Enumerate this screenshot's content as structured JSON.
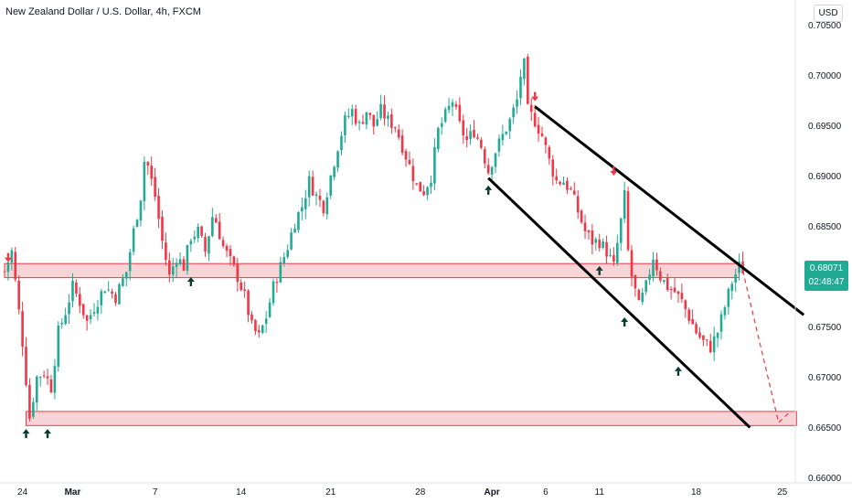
{
  "title": "New Zealand Dollar / U.S. Dollar, 4h, FXCM",
  "currency_button": "USD",
  "last_price": "0.68071",
  "countdown": "02:48:47",
  "colors": {
    "up": "#22ab94",
    "down": "#f23645",
    "zone_fill": "#f8c9cd",
    "zone_stroke": "#f23645",
    "channel": "#000000",
    "up_arrow": "#0c3a30",
    "down_arrow": "#f23645"
  },
  "icons": {
    "support_marker": "up-arrow-icon",
    "resistance_marker": "down-arrow-icon"
  },
  "chart_data": {
    "type": "candlestick",
    "title": "New Zealand Dollar / U.S. Dollar, 4h, FXCM",
    "y_axis_side": "right",
    "ylim": [
      0.6595,
      0.7075
    ],
    "y_ticks": [
      "0.70500",
      "0.70000",
      "0.69500",
      "0.69000",
      "0.68500",
      "0.68000",
      "0.67500",
      "0.67000",
      "0.66500",
      "0.66000"
    ],
    "y_tick_values": [
      0.705,
      0.7,
      0.695,
      0.69,
      0.685,
      0.68,
      0.675,
      0.67,
      0.665,
      0.66
    ],
    "x_ticks": [
      {
        "label": "24",
        "bar": 5,
        "bold": false
      },
      {
        "label": "Mar",
        "bar": 19,
        "bold": true
      },
      {
        "label": "7",
        "bar": 42,
        "bold": false
      },
      {
        "label": "14",
        "bar": 66,
        "bold": false
      },
      {
        "label": "21",
        "bar": 91,
        "bold": false
      },
      {
        "label": "28",
        "bar": 116,
        "bold": false
      },
      {
        "label": "Apr",
        "bar": 136,
        "bold": true
      },
      {
        "label": "6",
        "bar": 151,
        "bold": false
      },
      {
        "label": "11",
        "bar": 166,
        "bold": false
      },
      {
        "label": "18",
        "bar": 193,
        "bold": false
      },
      {
        "label": "25",
        "bar": 217,
        "bold": false
      }
    ],
    "path": [
      [
        0,
        0.6805
      ],
      [
        2,
        0.6825
      ],
      [
        5,
        0.6735
      ],
      [
        7,
        0.666
      ],
      [
        9,
        0.67
      ],
      [
        11,
        0.6705
      ],
      [
        13,
        0.669
      ],
      [
        15,
        0.6745
      ],
      [
        17,
        0.6765
      ],
      [
        19,
        0.679
      ],
      [
        21,
        0.6775
      ],
      [
        23,
        0.6755
      ],
      [
        25,
        0.677
      ],
      [
        28,
        0.679
      ],
      [
        31,
        0.678
      ],
      [
        34,
        0.6805
      ],
      [
        36,
        0.6845
      ],
      [
        38,
        0.688
      ],
      [
        39,
        0.6915
      ],
      [
        40,
        0.691
      ],
      [
        42,
        0.688
      ],
      [
        44,
        0.6835
      ],
      [
        46,
        0.68
      ],
      [
        48,
        0.682
      ],
      [
        50,
        0.681
      ],
      [
        52,
        0.684
      ],
      [
        54,
        0.6845
      ],
      [
        56,
        0.6825
      ],
      [
        58,
        0.686
      ],
      [
        59,
        0.6855
      ],
      [
        61,
        0.683
      ],
      [
        63,
        0.6815
      ],
      [
        65,
        0.68
      ],
      [
        67,
        0.678
      ],
      [
        69,
        0.675
      ],
      [
        71,
        0.674
      ],
      [
        73,
        0.676
      ],
      [
        75,
        0.679
      ],
      [
        77,
        0.681
      ],
      [
        79,
        0.683
      ],
      [
        81,
        0.6855
      ],
      [
        83,
        0.687
      ],
      [
        85,
        0.6895
      ],
      [
        87,
        0.688
      ],
      [
        89,
        0.687
      ],
      [
        91,
        0.69
      ],
      [
        93,
        0.693
      ],
      [
        95,
        0.6955
      ],
      [
        97,
        0.6965
      ],
      [
        99,
        0.695
      ],
      [
        101,
        0.6965
      ],
      [
        103,
        0.695
      ],
      [
        105,
        0.6965
      ],
      [
        107,
        0.6955
      ],
      [
        109,
        0.695
      ],
      [
        111,
        0.693
      ],
      [
        113,
        0.691
      ],
      [
        115,
        0.689
      ],
      [
        117,
        0.6885
      ],
      [
        119,
        0.69
      ],
      [
        121,
        0.6945
      ],
      [
        123,
        0.696
      ],
      [
        125,
        0.6975
      ],
      [
        127,
        0.695
      ],
      [
        129,
        0.6935
      ],
      [
        131,
        0.6945
      ],
      [
        133,
        0.693
      ],
      [
        135,
        0.6905
      ],
      [
        137,
        0.6925
      ],
      [
        139,
        0.694
      ],
      [
        141,
        0.6955
      ],
      [
        143,
        0.6975
      ],
      [
        144,
        0.7
      ],
      [
        145,
        0.701
      ],
      [
        146,
        0.6965
      ],
      [
        148,
        0.6955
      ],
      [
        150,
        0.694
      ],
      [
        152,
        0.6915
      ],
      [
        154,
        0.6895
      ],
      [
        156,
        0.6895
      ],
      [
        158,
        0.6885
      ],
      [
        160,
        0.6865
      ],
      [
        162,
        0.6845
      ],
      [
        164,
        0.6835
      ],
      [
        166,
        0.6835
      ],
      [
        168,
        0.6825
      ],
      [
        170,
        0.681
      ],
      [
        172,
        0.6855
      ],
      [
        173,
        0.688
      ],
      [
        174,
        0.6825
      ],
      [
        175,
        0.68
      ],
      [
        176,
        0.6785
      ],
      [
        177,
        0.677
      ],
      [
        179,
        0.679
      ],
      [
        181,
        0.682
      ],
      [
        183,
        0.68
      ],
      [
        185,
        0.679
      ],
      [
        187,
        0.6785
      ],
      [
        189,
        0.6775
      ],
      [
        191,
        0.676
      ],
      [
        193,
        0.6745
      ],
      [
        195,
        0.6735
      ],
      [
        197,
        0.673
      ],
      [
        199,
        0.6745
      ],
      [
        201,
        0.677
      ],
      [
        203,
        0.6795
      ],
      [
        205,
        0.681
      ],
      [
        206,
        0.6807
      ]
    ],
    "zones": [
      {
        "bar_from": 0,
        "bar_to": 205,
        "price_low": 0.6799,
        "price_high": 0.6813
      },
      {
        "bar_from": 6,
        "bar_to": 221,
        "price_low": 0.6652,
        "price_high": 0.6666
      }
    ],
    "channel_lines": [
      {
        "from": [
          148,
          0.6969
        ],
        "to": [
          223,
          0.6762
        ]
      },
      {
        "from": [
          135,
          0.6898
        ],
        "to": [
          208,
          0.665
        ]
      }
    ],
    "projection": {
      "points": [
        [
          206,
          0.6806
        ],
        [
          216,
          0.6655
        ],
        [
          219,
          0.6665
        ]
      ]
    },
    "markers": [
      {
        "type": "down",
        "bar": 1,
        "price": 0.6819
      },
      {
        "type": "up",
        "bar": 6,
        "price": 0.6644
      },
      {
        "type": "up",
        "bar": 12,
        "price": 0.6644
      },
      {
        "type": "up",
        "bar": 52,
        "price": 0.6795
      },
      {
        "type": "up",
        "bar": 135,
        "price": 0.6886
      },
      {
        "type": "down",
        "bar": 148,
        "price": 0.6979
      },
      {
        "type": "down",
        "bar": 170,
        "price": 0.6905
      },
      {
        "type": "up",
        "bar": 166,
        "price": 0.6806
      },
      {
        "type": "up",
        "bar": 173,
        "price": 0.6755
      },
      {
        "type": "up",
        "bar": 188,
        "price": 0.6706
      }
    ]
  }
}
